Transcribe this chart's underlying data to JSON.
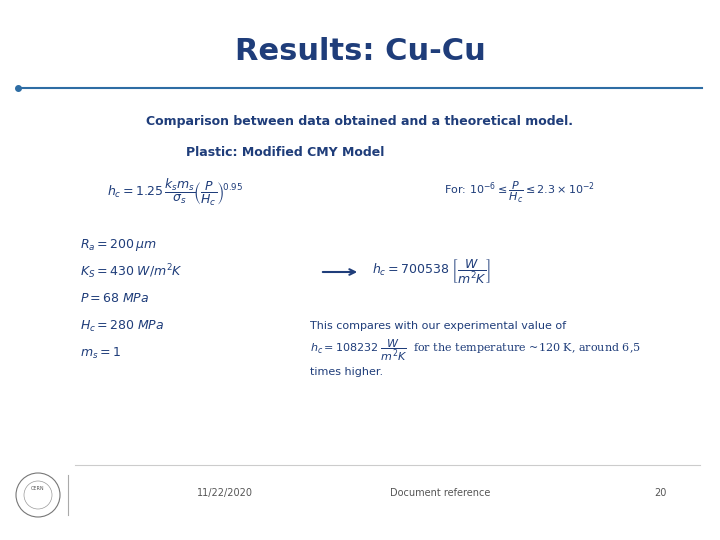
{
  "title": "Results: Cu-Cu",
  "title_color": "#1f3d7a",
  "title_fontsize": 22,
  "bg_color": "#ffffff",
  "line_color": "#2e6da4",
  "subtitle": "Comparison between data obtained and a theoretical model.",
  "subtitle_color": "#1f3d7a",
  "subtitle_fontsize": 9,
  "plastic_label": "Plastic: Modified CMY Model",
  "plastic_fontsize": 9,
  "text_color": "#1f3d7a",
  "formula_fontsize": 9,
  "for_fontsize": 8,
  "param_fontsize": 9,
  "result_fontsize": 9,
  "comment_fontsize": 8,
  "footer_date": "11/22/2020",
  "footer_ref": "Document reference",
  "footer_page": "20",
  "footer_fontsize": 7,
  "footer_color": "#555555"
}
